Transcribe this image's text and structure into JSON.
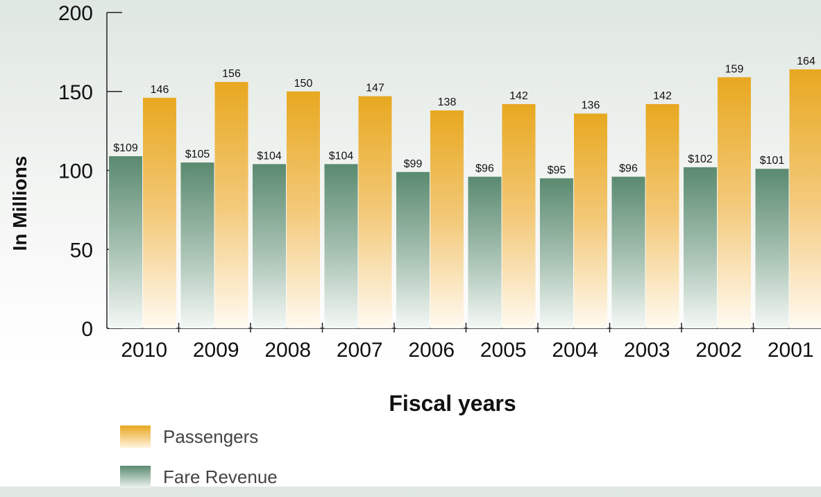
{
  "chart_data": {
    "type": "bar",
    "categories": [
      "2010",
      "2009",
      "2008",
      "2007",
      "2006",
      "2005",
      "2004",
      "2003",
      "2002",
      "2001"
    ],
    "series": [
      {
        "name": "Fare Revenue",
        "values": [
          109,
          105,
          104,
          104,
          99,
          96,
          95,
          96,
          102,
          101
        ],
        "labels": [
          "$109",
          "$105",
          "$104",
          "$104",
          "$99",
          "$96",
          "$95",
          "$96",
          "$102",
          "$101"
        ],
        "color": "#5a8a70"
      },
      {
        "name": "Passengers",
        "values": [
          146,
          156,
          150,
          147,
          138,
          142,
          136,
          142,
          159,
          164
        ],
        "labels": [
          "146",
          "156",
          "150",
          "147",
          "138",
          "142",
          "136",
          "142",
          "159",
          "164"
        ],
        "color": "#e8a820"
      }
    ],
    "xlabel": "Fiscal years",
    "ylabel": "In Millions",
    "ylim": [
      0,
      200
    ],
    "yticks": [
      "0",
      "50",
      "100",
      "150",
      "200"
    ],
    "legend": {
      "position": "bottom-left",
      "items": [
        {
          "label": "Passengers",
          "color": "#e8a820"
        },
        {
          "label": "Fare Revenue",
          "color": "#5a8a70"
        }
      ]
    }
  }
}
